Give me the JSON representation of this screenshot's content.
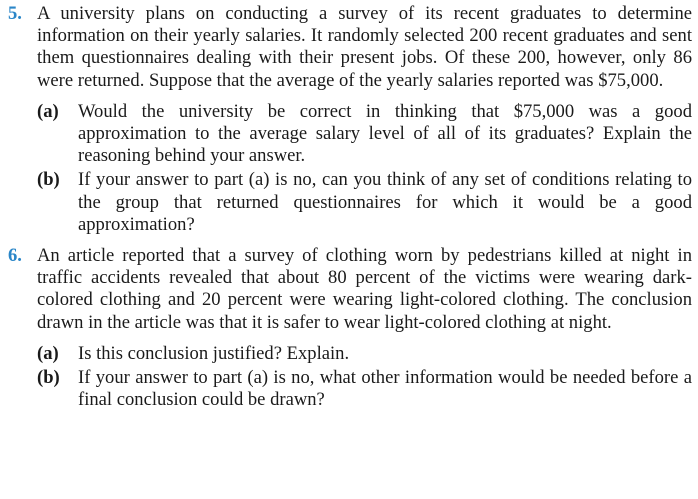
{
  "problems": [
    {
      "number": "5.",
      "text": "A university plans on conducting a survey of its recent graduates to determine information on their yearly salaries. It randomly selected 200 recent graduates and sent them questionnaires dealing with their present jobs. Of these 200, however, only 86 were returned. Suppose that the average of the yearly salaries reported was $75,000.",
      "parts": [
        {
          "label": "(a)",
          "text": "Would the university be correct in thinking that $75,000 was a good approximation to the average salary level of all of its graduates? Explain the reasoning behind your answer."
        },
        {
          "label": "(b)",
          "text": "If your answer to part (a) is no, can you think of any set of conditions relating to the group that returned questionnaires for which it would be a good approximation?"
        }
      ]
    },
    {
      "number": "6.",
      "text": "An article reported that a survey of clothing worn by pedestrians killed at night in traffic accidents revealed that about 80 percent of the victims were wearing dark-colored clothing and 20 percent were wearing light-colored clothing. The conclusion drawn in the article was that it is safer to wear light-colored clothing at night.",
      "parts": [
        {
          "label": "(a)",
          "text": "Is this conclusion justified? Explain."
        },
        {
          "label": "(b)",
          "text": "If your answer to part (a) is no, what other information would be needed before a final conclusion could be drawn?"
        }
      ]
    }
  ],
  "colors": {
    "problem_number": "#2a86c8",
    "text": "#1a1a1a"
  }
}
